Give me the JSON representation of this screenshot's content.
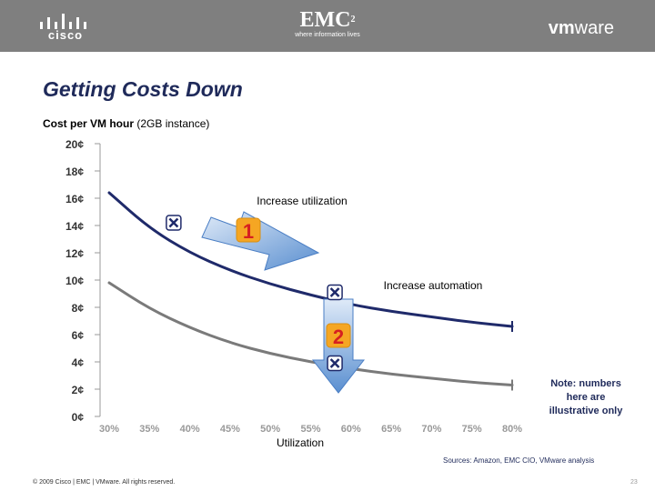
{
  "header": {
    "cisco_logo": "cisco",
    "emc_logo": "EMC",
    "emc_sup": "2",
    "emc_tagline": "where information lives",
    "vmware_logo_prefix": "vm",
    "vmware_logo_suffix": "ware"
  },
  "slide": {
    "title": "Getting Costs Down",
    "subtitle_bold": "Cost per VM hour",
    "subtitle_rest": " (2GB instance)",
    "sources": "Sources:  Amazon, EMC CIO, VMware analysis",
    "copyright": "© 2009 Cisco | EMC | VMware. All rights reserved.",
    "page_number": "23"
  },
  "chart_data": {
    "type": "line",
    "xlabel": "Utilization",
    "ylabel": "",
    "x_ticks": [
      "30%",
      "35%",
      "40%",
      "45%",
      "50%",
      "55%",
      "60%",
      "65%",
      "70%",
      "75%",
      "80%"
    ],
    "y_ticks": [
      "0¢",
      "2¢",
      "4¢",
      "6¢",
      "8¢",
      "10¢",
      "12¢",
      "14¢",
      "16¢",
      "18¢",
      "20¢"
    ],
    "xlim": [
      30,
      80
    ],
    "ylim": [
      0,
      20
    ],
    "series": [
      {
        "color": "#1f2a6a",
        "x": [
          30,
          35,
          40,
          45,
          50,
          55,
          60,
          65,
          70,
          75,
          80
        ],
        "y": [
          16.4,
          13.8,
          12.0,
          10.7,
          9.7,
          8.9,
          8.2,
          7.7,
          7.3,
          6.9,
          6.6
        ]
      },
      {
        "color": "#7a7a7a",
        "x": [
          30,
          35,
          40,
          45,
          50,
          55,
          60,
          65,
          70,
          75,
          80
        ],
        "y": [
          9.8,
          7.9,
          6.5,
          5.4,
          4.6,
          4.0,
          3.5,
          3.1,
          2.8,
          2.5,
          2.3
        ]
      }
    ],
    "markers": [
      {
        "x": 38,
        "y": 14.2
      },
      {
        "x": 58,
        "y": 9.1
      },
      {
        "x": 58,
        "y": 3.9
      }
    ],
    "annotations": [
      {
        "number": "1",
        "label": "Increase utilization"
      },
      {
        "number": "2",
        "label": "Increase automation"
      }
    ],
    "note": [
      "Note: numbers",
      "here are",
      "illustrative only"
    ]
  }
}
